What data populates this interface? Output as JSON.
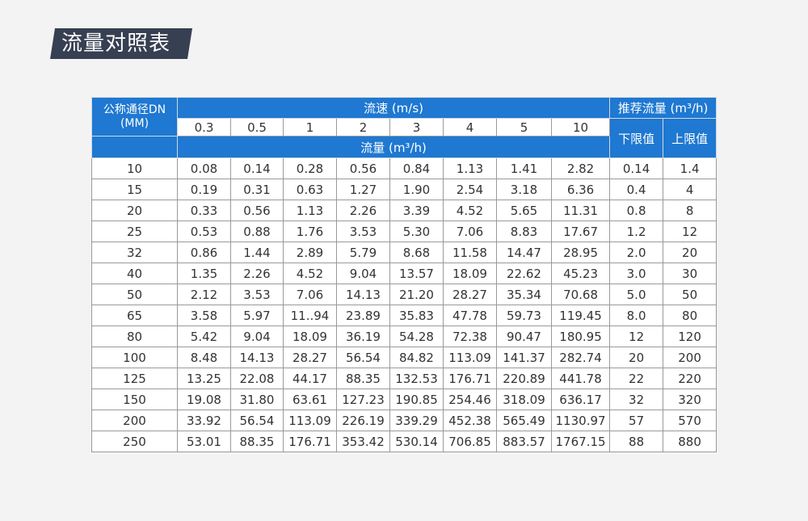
{
  "title": "流量对照表",
  "table": {
    "dn_header_line1": "公称通径DN",
    "dn_header_line2": "(MM)",
    "velocity_header": "流速 (m/s)",
    "recommended_header": "推荐流量 (m³/h)",
    "flow_header": "流量 (m³/h)",
    "lower_header": "下限值",
    "upper_header": "上限值",
    "velocities": [
      "0.3",
      "0.5",
      "1",
      "2",
      "3",
      "4",
      "5",
      "10"
    ],
    "rows": [
      [
        "10",
        "0.08",
        "0.14",
        "0.28",
        "0.56",
        "0.84",
        "1.13",
        "1.41",
        "2.82",
        "0.14",
        "1.4"
      ],
      [
        "15",
        "0.19",
        "0.31",
        "0.63",
        "1.27",
        "1.90",
        "2.54",
        "3.18",
        "6.36",
        "0.4",
        "4"
      ],
      [
        "20",
        "0.33",
        "0.56",
        "1.13",
        "2.26",
        "3.39",
        "4.52",
        "5.65",
        "11.31",
        "0.8",
        "8"
      ],
      [
        "25",
        "0.53",
        "0.88",
        "1.76",
        "3.53",
        "5.30",
        "7.06",
        "8.83",
        "17.67",
        "1.2",
        "12"
      ],
      [
        "32",
        "0.86",
        "1.44",
        "2.89",
        "5.79",
        "8.68",
        "11.58",
        "14.47",
        "28.95",
        "2.0",
        "20"
      ],
      [
        "40",
        "1.35",
        "2.26",
        "4.52",
        "9.04",
        "13.57",
        "18.09",
        "22.62",
        "45.23",
        "3.0",
        "30"
      ],
      [
        "50",
        "2.12",
        "3.53",
        "7.06",
        "14.13",
        "21.20",
        "28.27",
        "35.34",
        "70.68",
        "5.0",
        "50"
      ],
      [
        "65",
        "3.58",
        "5.97",
        "11..94",
        "23.89",
        "35.83",
        "47.78",
        "59.73",
        "119.45",
        "8.0",
        "80"
      ],
      [
        "80",
        "5.42",
        "9.04",
        "18.09",
        "36.19",
        "54.28",
        "72.38",
        "90.47",
        "180.95",
        "12",
        "120"
      ],
      [
        "100",
        "8.48",
        "14.13",
        "28.27",
        "56.54",
        "84.82",
        "113.09",
        "141.37",
        "282.74",
        "20",
        "200"
      ],
      [
        "125",
        "13.25",
        "22.08",
        "44.17",
        "88.35",
        "132.53",
        "176.71",
        "220.89",
        "441.78",
        "22",
        "220"
      ],
      [
        "150",
        "19.08",
        "31.80",
        "63.61",
        "127.23",
        "190.85",
        "254.46",
        "318.09",
        "636.17",
        "32",
        "320"
      ],
      [
        "200",
        "33.92",
        "56.54",
        "113.09",
        "226.19",
        "339.29",
        "452.38",
        "565.49",
        "1130.97",
        "57",
        "570"
      ],
      [
        "250",
        "53.01",
        "88.35",
        "176.71",
        "353.42",
        "530.14",
        "706.85",
        "883.57",
        "1767.15",
        "88",
        "880"
      ]
    ]
  },
  "colors": {
    "header_blue": "#1f78d1",
    "title_bg": "#373f52",
    "page_bg": "#f3f3f3"
  }
}
